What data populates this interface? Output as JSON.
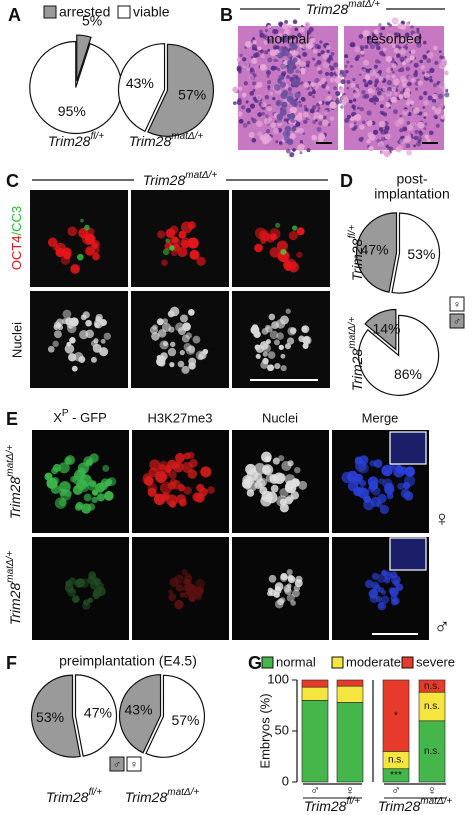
{
  "figure": {
    "panels": [
      "A",
      "B",
      "C",
      "D",
      "E",
      "F",
      "G"
    ],
    "b": {
      "header": {
        "base": "Trim28",
        "sup": "matΔ/+"
      },
      "images": [
        "normal",
        "resorbed"
      ]
    },
    "c": {
      "header": {
        "base": "Trim28",
        "sup": "matΔ/+"
      },
      "row_stain_1": [
        "OCT4",
        "/CC3"
      ],
      "row_stain_2": "Nuclei"
    },
    "e": {
      "columns": [
        {
          "base": "X",
          "sup": "P",
          "rest": " - GFP"
        },
        "H3K27me3",
        "Nuclei",
        "Merge"
      ],
      "rows": [
        {
          "base": "Trim28",
          "sup": "matΔ/+"
        },
        {
          "base": "Trim28",
          "sup": "matΔ/+"
        }
      ],
      "sex": [
        "♀",
        "♂"
      ]
    }
  },
  "chart_data": [
    {
      "type": "pie",
      "categories": [
        "arrested",
        "viable"
      ],
      "colors": [
        "#9a9a9a",
        "#ffffff"
      ],
      "pies": [
        {
          "label": {
            "base": "Trim28",
            "sup": "fl/+"
          },
          "values": [
            5,
            95
          ],
          "value_labels": [
            "5%",
            "95%"
          ]
        },
        {
          "label": {
            "base": "Trim28",
            "sup": "matΔ/+"
          },
          "values": [
            57,
            43
          ],
          "value_labels": [
            "57%",
            "43%"
          ]
        }
      ]
    },
    {
      "type": "pie",
      "title": [
        "post-",
        "implantation"
      ],
      "categories": [
        "♀",
        "♂"
      ],
      "colors": [
        "#ffffff",
        "#9a9a9a"
      ],
      "pies": [
        {
          "label": {
            "base": "Trim28",
            "sup": "fl/+"
          },
          "values": [
            53,
            47
          ],
          "value_labels": [
            "53%",
            "47%"
          ]
        },
        {
          "label": {
            "base": "Trim28",
            "sup": "matΔ/+"
          },
          "values": [
            86,
            14
          ],
          "value_labels": [
            "86%",
            "14%"
          ]
        }
      ]
    },
    {
      "type": "pie",
      "title": [
        "preimplantation (E4.5)"
      ],
      "categories": [
        "♂",
        "♀"
      ],
      "colors": [
        "#9a9a9a",
        "#ffffff"
      ],
      "pies": [
        {
          "label": {
            "base": "Trim28",
            "sup": "fl/+"
          },
          "values": [
            53,
            47
          ],
          "value_labels": [
            "53%",
            "47%"
          ]
        },
        {
          "label": {
            "base": "Trim28",
            "sup": "matΔ/+"
          },
          "values": [
            43,
            57
          ],
          "value_labels": [
            "43%",
            "57%"
          ]
        }
      ]
    },
    {
      "type": "stacked-bar",
      "ylabel": "Embryos (%)",
      "ylim": [
        0,
        100
      ],
      "yticks": [
        0,
        50,
        100
      ],
      "categories": [
        "♂",
        "♀",
        "♂",
        "♀"
      ],
      "groups": [
        {
          "base": "Trim28",
          "sup": "fl/+"
        },
        {
          "base": "Trim28",
          "sup": "matΔ/+"
        }
      ],
      "series": [
        {
          "name": "normal",
          "color": "#45b649",
          "values": [
            80,
            78,
            13,
            60
          ],
          "annotations": [
            null,
            null,
            "***",
            "n.s."
          ]
        },
        {
          "name": "moderate",
          "color": "#f5e63f",
          "values": [
            13,
            16,
            17,
            28
          ],
          "annotations": [
            null,
            null,
            "n.s.",
            "n.s."
          ]
        },
        {
          "name": "severe",
          "color": "#e63b2a",
          "values": [
            7,
            6,
            70,
            12
          ],
          "annotations": [
            null,
            null,
            "*",
            "n.s."
          ]
        }
      ]
    }
  ]
}
